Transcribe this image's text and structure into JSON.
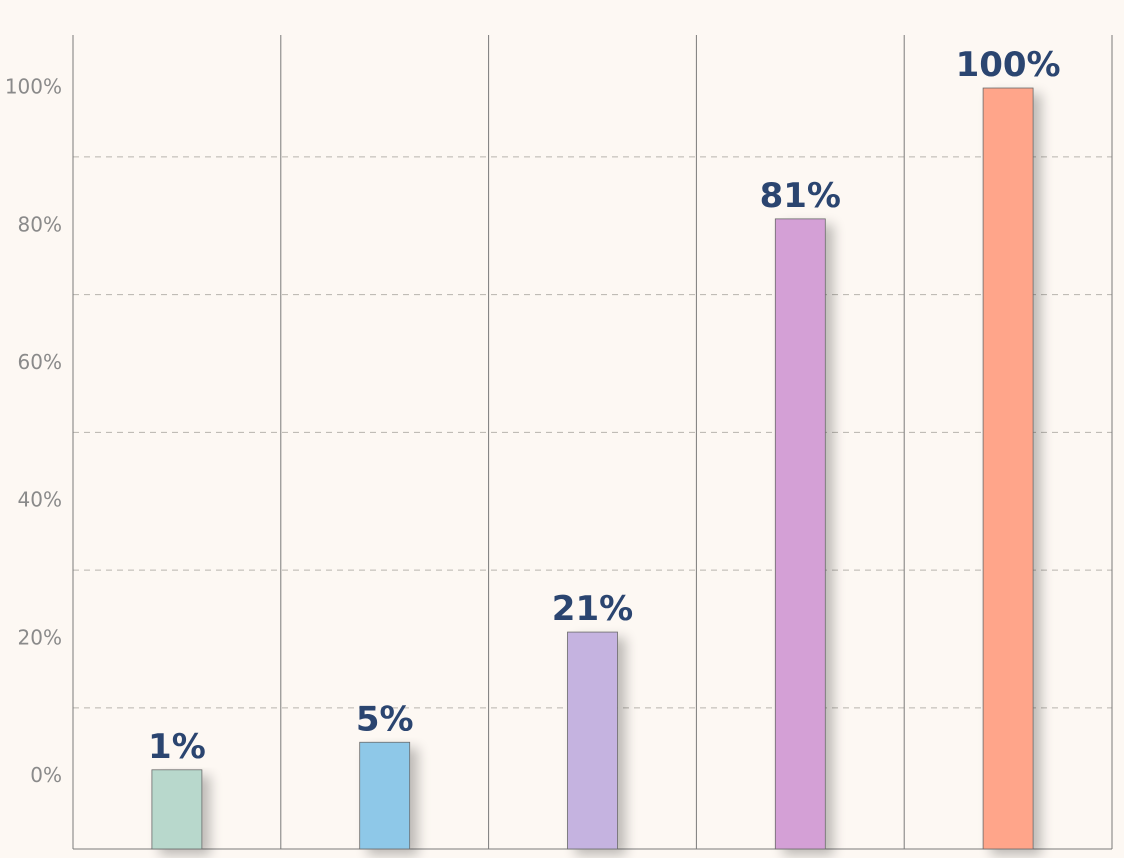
{
  "chart_data": {
    "type": "bar",
    "categories": [
      null,
      null,
      null,
      null,
      null
    ],
    "values": [
      1,
      5,
      21,
      81,
      100
    ],
    "value_labels": [
      "1%",
      "5%",
      "21%",
      "81%",
      "100%"
    ],
    "colors": [
      "#b8d8cc",
      "#8ec8e8",
      "#c5b3e0",
      "#d4a0d6",
      "#ffa58a"
    ],
    "ylim": [
      -10.5,
      107.7
    ],
    "yticks": [
      {
        "value": 0,
        "label": "0%"
      },
      {
        "value": 20,
        "label": "20%"
      },
      {
        "value": 40,
        "label": "40%"
      },
      {
        "value": 60,
        "label": "60%"
      },
      {
        "value": 80,
        "label": "80%"
      },
      {
        "value": 100,
        "label": "100%"
      }
    ],
    "grid_lines": [
      10,
      30,
      50,
      70,
      90
    ]
  }
}
